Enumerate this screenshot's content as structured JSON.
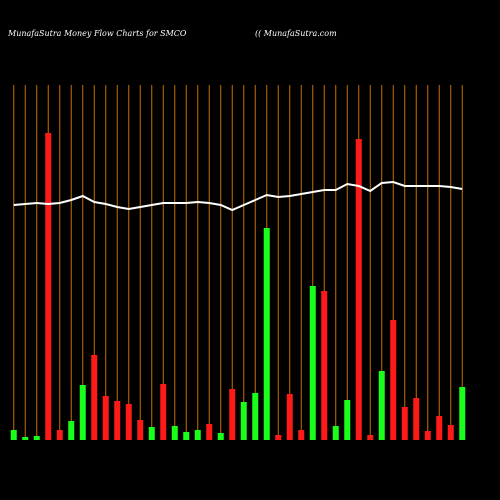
{
  "chart_data": {
    "type": "bar",
    "title": "MunafaSutra  Money Flow  Charts for SMCO",
    "subtitle": "(( MunafaSutra.com",
    "categories": [
      null,
      null,
      null,
      null,
      null,
      null,
      null,
      null,
      null,
      null,
      null,
      null,
      null,
      null,
      null,
      null,
      null,
      null,
      null,
      null,
      null,
      null,
      null,
      null,
      null,
      null,
      null,
      null,
      null,
      null,
      null,
      null,
      null,
      null,
      null,
      null,
      null,
      null,
      null,
      null
    ],
    "values": [
      10,
      3,
      4,
      307,
      10,
      19,
      55,
      85,
      44,
      39,
      36,
      20,
      13,
      56,
      14,
      8,
      10,
      16,
      7,
      51,
      38,
      47,
      212,
      5,
      46,
      10,
      154,
      149,
      14,
      40,
      301,
      5,
      69,
      120,
      33,
      42,
      9,
      24,
      15,
      53
    ],
    "colors": [
      "#1aff1a",
      "#1aff1a",
      "#1aff1a",
      "#ff1a1a",
      "#ff1a1a",
      "#1aff1a",
      "#1aff1a",
      "#ff1a1a",
      "#ff1a1a",
      "#ff1a1a",
      "#ff1a1a",
      "#ff1a1a",
      "#1aff1a",
      "#ff1a1a",
      "#1aff1a",
      "#1aff1a",
      "#1aff1a",
      "#ff1a1a",
      "#1aff1a",
      "#ff1a1a",
      "#1aff1a",
      "#1aff1a",
      "#1aff1a",
      "#ff1a1a",
      "#ff1a1a",
      "#ff1a1a",
      "#1aff1a",
      "#ff1a1a",
      "#1aff1a",
      "#1aff1a",
      "#ff1a1a",
      "#ff1a1a",
      "#1aff1a",
      "#ff1a1a",
      "#ff1a1a",
      "#ff1a1a",
      "#ff1a1a",
      "#ff1a1a",
      "#ff1a1a",
      "#1aff1a"
    ],
    "line": {
      "color": "#ffffff",
      "values": [
        235,
        236,
        237,
        236,
        237,
        240,
        244,
        238,
        236,
        233,
        231,
        233,
        235,
        237,
        237,
        237,
        238,
        237,
        235,
        230,
        235,
        240,
        245,
        243,
        244,
        246,
        248,
        250,
        250,
        256,
        254,
        249,
        257,
        258,
        254,
        254,
        254,
        254,
        253,
        251
      ]
    },
    "ylim": [
      0,
      400
    ],
    "gridcolor": "#c87000"
  }
}
